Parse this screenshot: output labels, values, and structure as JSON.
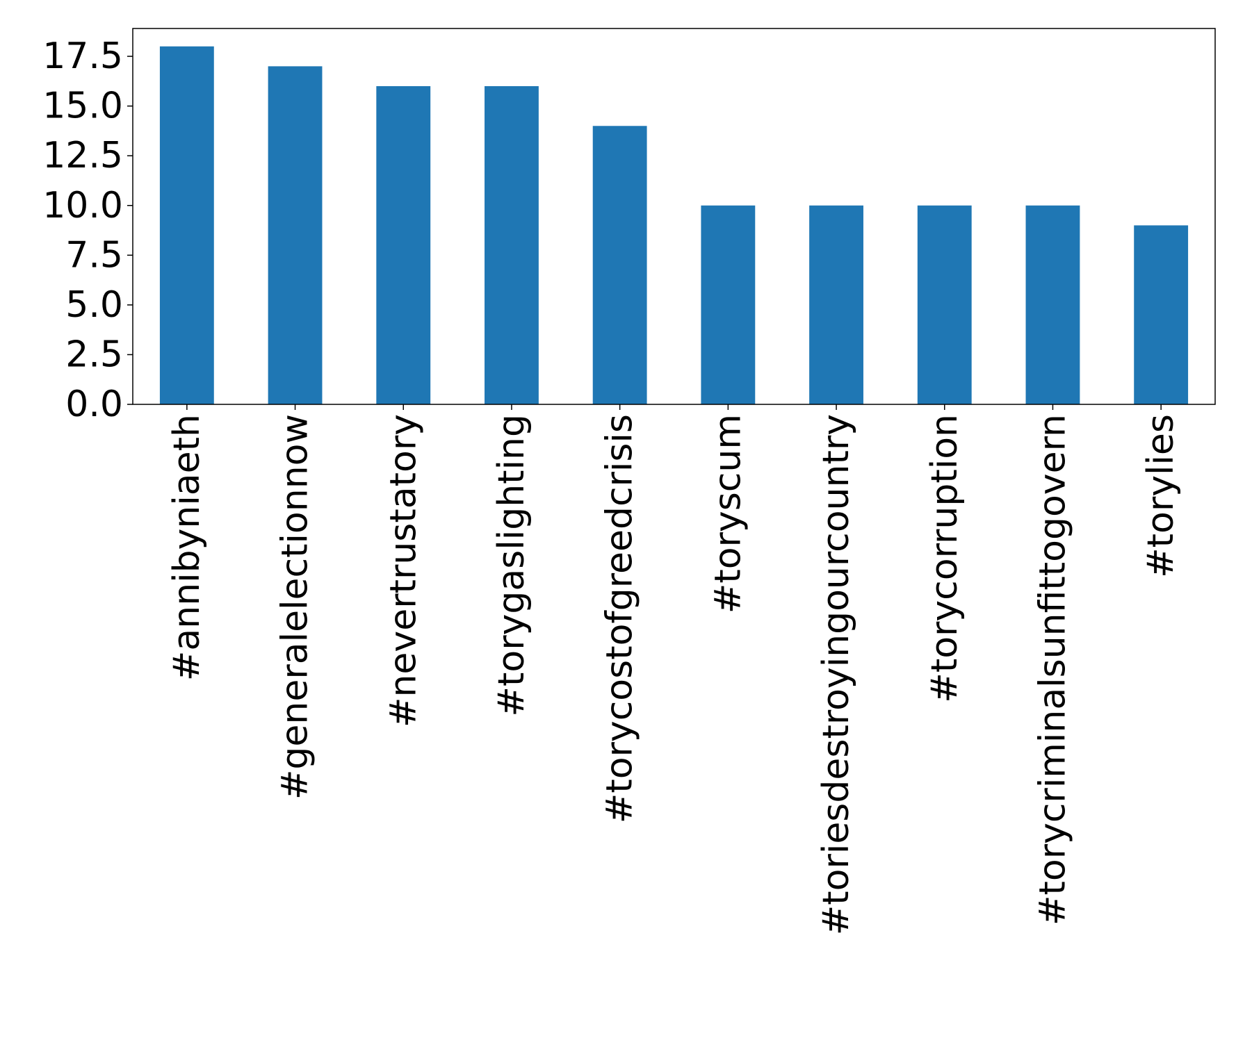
{
  "chart_data": {
    "type": "bar",
    "categories": [
      "#annibyniaeth",
      "#generalelectionnow",
      "#nevertrustatory",
      "#torygaslighting",
      "#torycostofgreedcrisis",
      "#toryscum",
      "#toriesdestroyingourcountry",
      "#torycorruption",
      "#torycriminalsunfittogovern",
      "#torylies"
    ],
    "values": [
      18,
      17,
      16,
      16,
      14,
      10,
      10,
      10,
      10,
      9
    ],
    "yticks": [
      "0.0",
      "2.5",
      "5.0",
      "7.5",
      "10.0",
      "12.5",
      "15.0",
      "17.5"
    ],
    "ylim": [
      0,
      18.9
    ],
    "bar_color": "#1f77b4",
    "grid": false
  }
}
